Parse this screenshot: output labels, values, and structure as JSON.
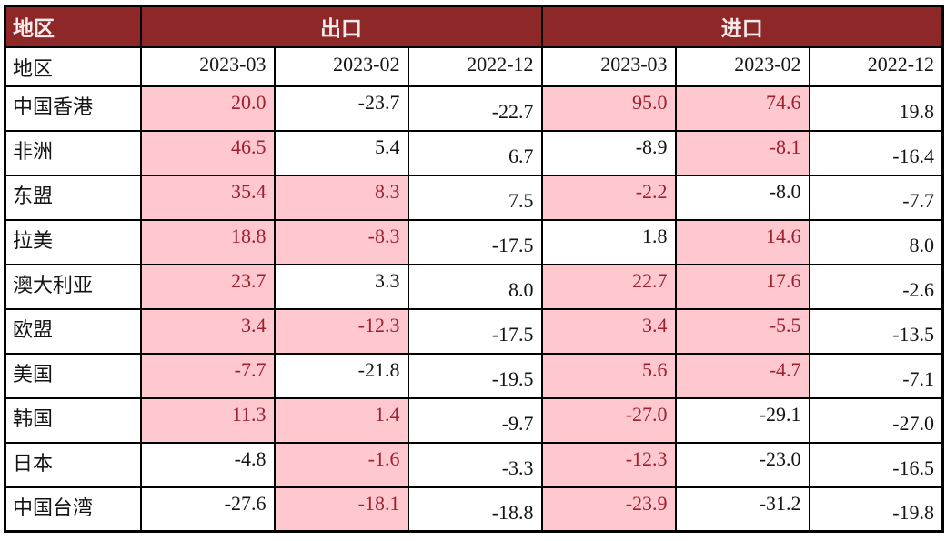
{
  "header": {
    "region": "地区",
    "export": "出口",
    "import": "进口",
    "region_sub": "地区",
    "periods": [
      "2023-03",
      "2023-02",
      "2022-12"
    ]
  },
  "colors": {
    "header_bg": "#8E2727",
    "header_text": "#F6EAEA",
    "highlight_bg": "#FFC7CE",
    "highlight_text": "#9C2030",
    "border": "#000000",
    "text": "#141414"
  },
  "chart_data": {
    "type": "table",
    "title": "",
    "column_groups": [
      "出口",
      "进口"
    ],
    "columns": [
      "地区",
      "出口 2023-03",
      "出口 2023-02",
      "出口 2022-12",
      "进口 2023-03",
      "进口 2023-02",
      "进口 2022-12"
    ],
    "highlight_meaning": "pink cells emphasized with dark-red text",
    "rows": [
      {
        "region": "中国香港",
        "export": [
          20.0,
          -23.7,
          -22.7
        ],
        "export_highlight": [
          true,
          false,
          false
        ],
        "import": [
          95.0,
          74.6,
          19.8
        ],
        "import_highlight": [
          true,
          true,
          false
        ]
      },
      {
        "region": "非洲",
        "export": [
          46.5,
          5.4,
          6.7
        ],
        "export_highlight": [
          true,
          false,
          false
        ],
        "import": [
          -8.9,
          -8.1,
          -16.4
        ],
        "import_highlight": [
          false,
          true,
          false
        ]
      },
      {
        "region": "东盟",
        "export": [
          35.4,
          8.3,
          7.5
        ],
        "export_highlight": [
          true,
          true,
          false
        ],
        "import": [
          -2.2,
          -8.0,
          -7.7
        ],
        "import_highlight": [
          true,
          false,
          false
        ]
      },
      {
        "region": "拉美",
        "export": [
          18.8,
          -8.3,
          -17.5
        ],
        "export_highlight": [
          true,
          true,
          false
        ],
        "import": [
          1.8,
          14.6,
          8.0
        ],
        "import_highlight": [
          false,
          true,
          false
        ]
      },
      {
        "region": "澳大利亚",
        "export": [
          23.7,
          3.3,
          8.0
        ],
        "export_highlight": [
          true,
          false,
          false
        ],
        "import": [
          22.7,
          17.6,
          -2.6
        ],
        "import_highlight": [
          true,
          true,
          false
        ]
      },
      {
        "region": "欧盟",
        "export": [
          3.4,
          -12.3,
          -17.5
        ],
        "export_highlight": [
          true,
          true,
          false
        ],
        "import": [
          3.4,
          -5.5,
          -13.5
        ],
        "import_highlight": [
          true,
          true,
          false
        ]
      },
      {
        "region": "美国",
        "export": [
          -7.7,
          -21.8,
          -19.5
        ],
        "export_highlight": [
          true,
          false,
          false
        ],
        "import": [
          5.6,
          -4.7,
          -7.1
        ],
        "import_highlight": [
          true,
          true,
          false
        ]
      },
      {
        "region": "韩国",
        "export": [
          11.3,
          1.4,
          -9.7
        ],
        "export_highlight": [
          true,
          true,
          false
        ],
        "import": [
          -27.0,
          -29.1,
          -27.0
        ],
        "import_highlight": [
          true,
          false,
          false
        ]
      },
      {
        "region": "日本",
        "export": [
          -4.8,
          -1.6,
          -3.3
        ],
        "export_highlight": [
          false,
          true,
          false
        ],
        "import": [
          -12.3,
          -23.0,
          -16.5
        ],
        "import_highlight": [
          true,
          false,
          false
        ]
      },
      {
        "region": "中国台湾",
        "export": [
          -27.6,
          -18.1,
          -18.8
        ],
        "export_highlight": [
          false,
          true,
          false
        ],
        "import": [
          -23.9,
          -31.2,
          -19.8
        ],
        "import_highlight": [
          true,
          false,
          false
        ]
      }
    ]
  }
}
